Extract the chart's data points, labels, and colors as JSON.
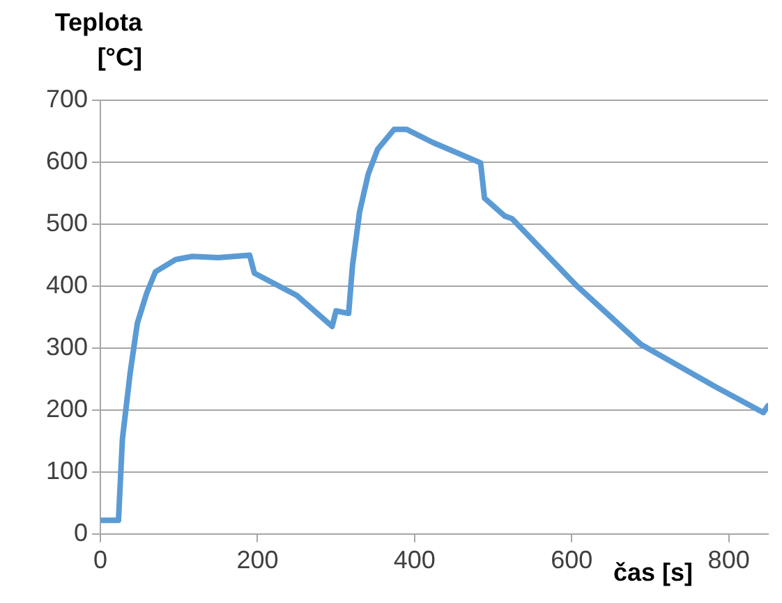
{
  "chart_data": {
    "type": "line",
    "xlabel": "čas [s]",
    "ylabel": "Teplota [°C]",
    "x": [
      0,
      23,
      28,
      38,
      47,
      59,
      70,
      96,
      117,
      150,
      190,
      196,
      250,
      295,
      300,
      316,
      321,
      330,
      341,
      353,
      374,
      390,
      423,
      484,
      489,
      515,
      524,
      606,
      688,
      781,
      844,
      850
    ],
    "series": [
      {
        "color": "#5b9bd5",
        "values": [
          22,
          22,
          153,
          261,
          340,
          389,
          423,
          443,
          448,
          446,
          450,
          421,
          385,
          335,
          360,
          356,
          434,
          520,
          581,
          621,
          653,
          653,
          632,
          599,
          542,
          513,
          509,
          401,
          306,
          239,
          196,
          207
        ]
      }
    ],
    "xlim": [
      0,
      850
    ],
    "xticks": [
      0,
      200,
      400,
      600,
      800
    ],
    "ylim": [
      0,
      700
    ],
    "yticks": [
      0,
      100,
      200,
      300,
      400,
      500,
      600,
      700
    ],
    "grid": "y",
    "legend": false,
    "marker": "none",
    "line_style": "solid"
  }
}
